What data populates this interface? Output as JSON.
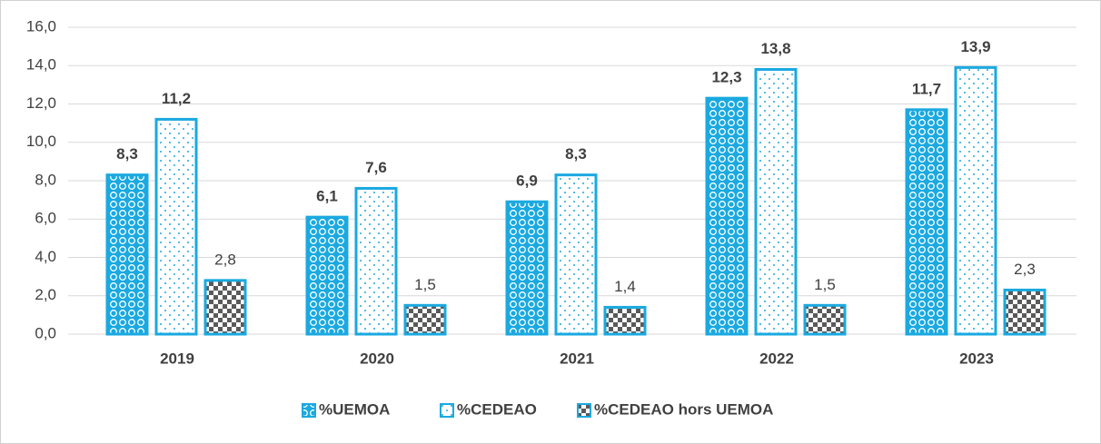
{
  "chart_data": {
    "type": "bar",
    "categories": [
      "2019",
      "2020",
      "2021",
      "2022",
      "2023"
    ],
    "series": [
      {
        "name": "%UEMOA",
        "color": "#1aa9e0",
        "values": [
          8.3,
          6.1,
          6.9,
          12.3,
          11.7
        ],
        "value_labels": [
          "8,3",
          "6,1",
          "6,9",
          "12,3",
          "11,7"
        ]
      },
      {
        "name": "%CEDEAO",
        "color": "#1aa9e0",
        "values": [
          11.2,
          7.6,
          8.3,
          13.8,
          13.9
        ],
        "value_labels": [
          "11,2",
          "7,6",
          "8,3",
          "13,8",
          "13,9"
        ]
      },
      {
        "name": "%CEDEAO hors UEMOA",
        "color": "#1aa9e0",
        "values": [
          2.8,
          1.5,
          1.4,
          1.5,
          2.3
        ],
        "value_labels": [
          "2,8",
          "1,5",
          "1,4",
          "1,5",
          "2,3"
        ]
      }
    ],
    "ylim": [
      0,
      16
    ],
    "yticks": [
      {
        "value": 0,
        "label": "0,0"
      },
      {
        "value": 2,
        "label": "2,0"
      },
      {
        "value": 4,
        "label": "4,0"
      },
      {
        "value": 6,
        "label": "6,0"
      },
      {
        "value": 8,
        "label": "8,0"
      },
      {
        "value": 10,
        "label": "10,0"
      },
      {
        "value": 12,
        "label": "12,0"
      },
      {
        "value": 14,
        "label": "14,0"
      },
      {
        "value": 16,
        "label": "16,0"
      }
    ],
    "grid": true,
    "legend": "bottom"
  }
}
